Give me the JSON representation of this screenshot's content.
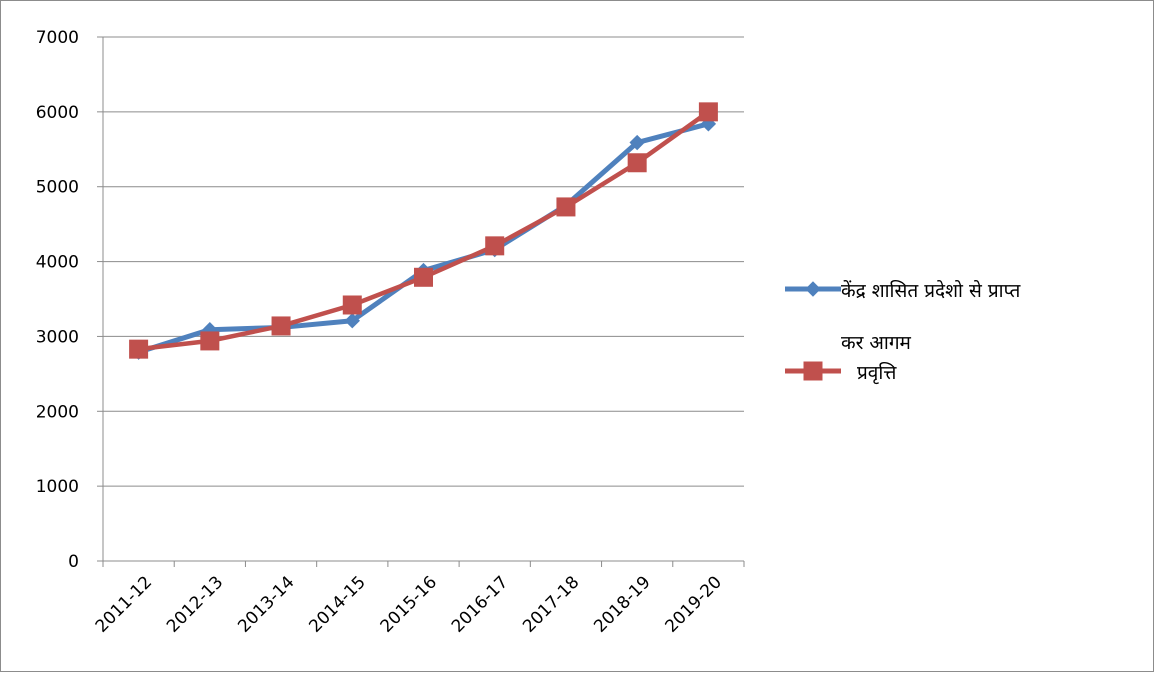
{
  "chart_data": {
    "type": "line",
    "categories": [
      "2011-12",
      "2012-13",
      "2013-14",
      "2014-15",
      "2015-16",
      "2016-17",
      "2017-18",
      "2018-19",
      "2019-20"
    ],
    "series": [
      {
        "name": "केंद्र शासित प्रदेशो से प्राप्त कर आगम",
        "name_lines": [
          "केंद्र शासित प्रदेशो से प्राप्त",
          "कर आगम"
        ],
        "color": "#4f81bd",
        "marker": "diamond",
        "values": [
          2790,
          3090,
          3120,
          3210,
          3880,
          4160,
          4750,
          5590,
          5840
        ]
      },
      {
        "name": "प्रवृत्ति",
        "name_lines": [
          "प्रवृत्ति"
        ],
        "color": "#c0504d",
        "marker": "square",
        "values": [
          2830,
          2940,
          3140,
          3420,
          3790,
          4210,
          4730,
          5320,
          6000
        ]
      }
    ],
    "ylim": [
      0,
      7000
    ],
    "y_ticks": [
      0,
      1000,
      2000,
      3000,
      4000,
      5000,
      6000,
      7000
    ],
    "grid": true,
    "legend_position": "right",
    "title": "",
    "xlabel": "",
    "ylabel": ""
  }
}
